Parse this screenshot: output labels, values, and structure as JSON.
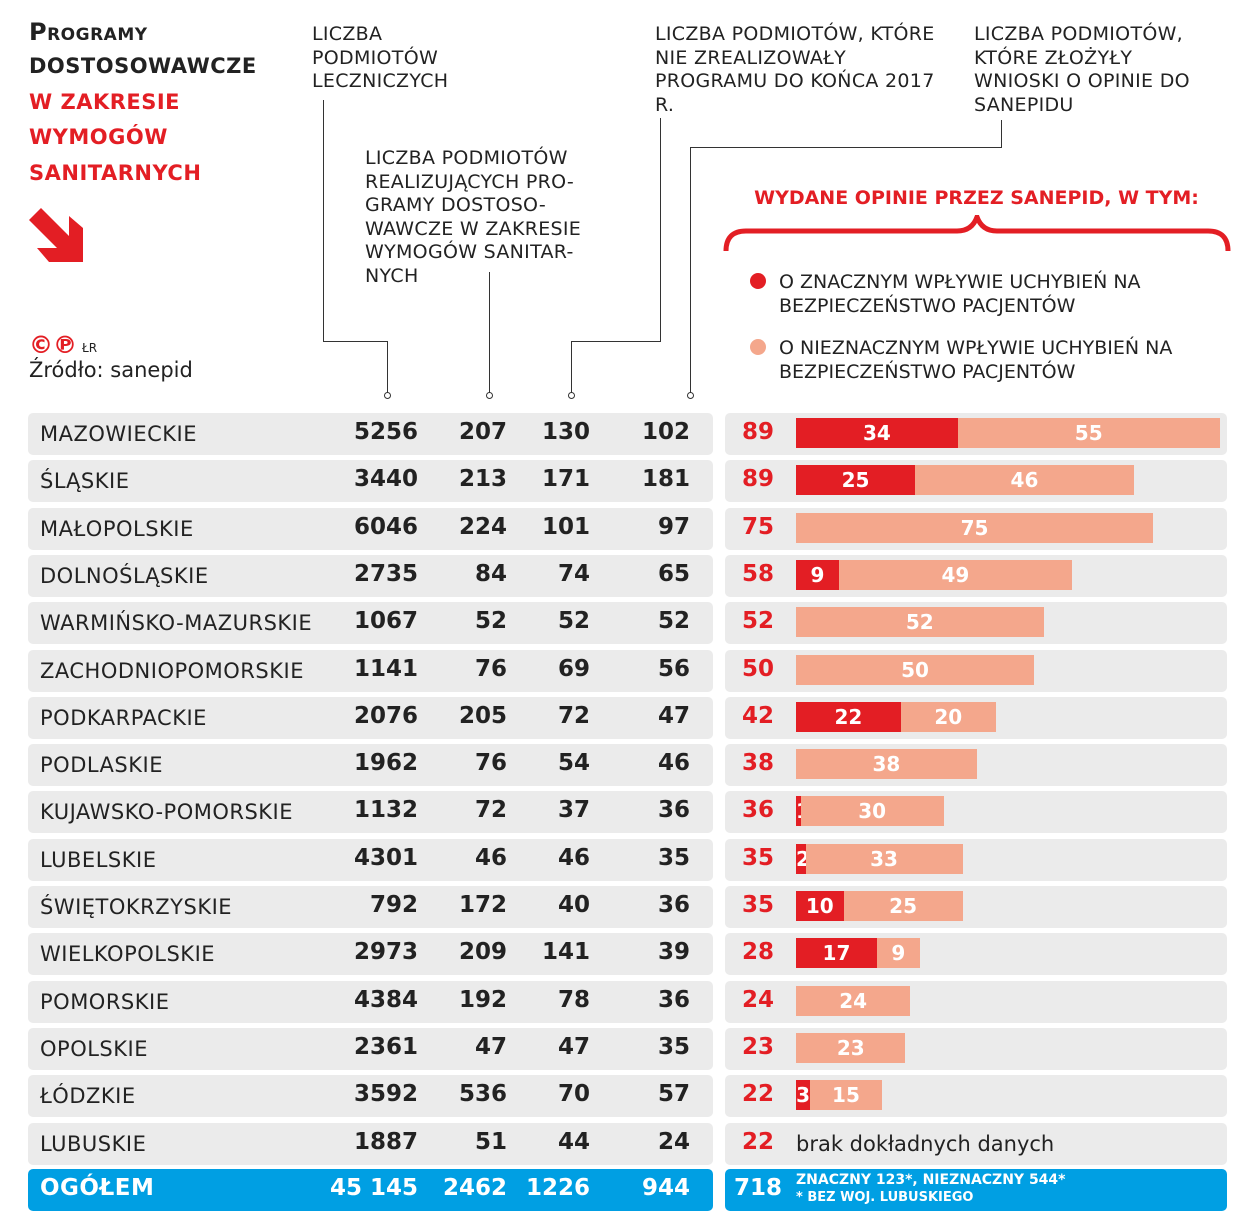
{
  "title": {
    "line1": "Programy",
    "line2": "dostosowawcze",
    "line3": "w zakresie",
    "line4": "wymogów",
    "line5": "sanitarnych"
  },
  "credit": {
    "marks": "©℗",
    "author": "ŁR",
    "source": "Źródło: sanepid"
  },
  "headers": {
    "col1": "LICZBA PODMIOTÓW LECZNICZYCH",
    "col2": "LICZBA PODMIOTÓW REALIZUJĄCYCH PRO-GRAMY DOSTOSO-WAWCZE W ZAKRESIE WYMOGÓW SANITAR-NYCH",
    "col3": "LICZBA PODMIOTÓW, KTÓRE NIE ZREALIZOWAŁY PROGRAMU DO KOŃCA 2017 R.",
    "col4": "LICZBA PODMIOTÓW, KTÓRE ZŁOŻYŁY WNIOSKI O OPINIE DO SANEPIDU",
    "opinions": "WYDANE OPINIE PRZEZ SANEPID, W TYM:"
  },
  "colors": {
    "red": "#e31e24",
    "salmon": "#f4a78c",
    "blue": "#009fe3",
    "row": "#ebebeb"
  },
  "chart_data": {
    "type": "bar",
    "stacked": true,
    "title": "WYDANE OPINIE PRZEZ SANEPID, W TYM:",
    "legend": [
      {
        "name": "O ZNACZNYM WPŁYWIE UCHYBIEŃ NA BEZPIECZEŃSTWO PACJENTÓW",
        "color": "#e31e24"
      },
      {
        "name": "O NIEZNACZNYM WPŁYWIE UCHYBIEŃ NA BEZPIECZEŃSTWO PACJENTÓW",
        "color": "#f4a78c"
      }
    ],
    "rows": [
      {
        "region": "MAZOWIECKIE",
        "entities": "5256",
        "programs": "207",
        "unfinished": "130",
        "applications": "102",
        "opinions": 89,
        "major": 34,
        "minor": 55
      },
      {
        "region": "ŚLĄSKIE",
        "entities": "3440",
        "programs": "213",
        "unfinished": "171",
        "applications": "181",
        "opinions": 89,
        "major": 25,
        "minor": 46
      },
      {
        "region": "MAŁOPOLSKIE",
        "entities": "6046",
        "programs": "224",
        "unfinished": "101",
        "applications": "97",
        "opinions": 75,
        "major": 0,
        "minor": 75
      },
      {
        "region": "DOLNOŚLĄSKIE",
        "entities": "2735",
        "programs": "84",
        "unfinished": "74",
        "applications": "65",
        "opinions": 58,
        "major": 9,
        "minor": 49
      },
      {
        "region": "WARMIŃSKO-MAZURSKIE",
        "entities": "1067",
        "programs": "52",
        "unfinished": "52",
        "applications": "52",
        "opinions": 52,
        "major": 0,
        "minor": 52
      },
      {
        "region": "ZACHODNIOPOMORSKIE",
        "entities": "1141",
        "programs": "76",
        "unfinished": "69",
        "applications": "56",
        "opinions": 50,
        "major": 0,
        "minor": 50
      },
      {
        "region": "PODKARPACKIE",
        "entities": "2076",
        "programs": "205",
        "unfinished": "72",
        "applications": "47",
        "opinions": 42,
        "major": 22,
        "minor": 20
      },
      {
        "region": "PODLASKIE",
        "entities": "1962",
        "programs": "76",
        "unfinished": "54",
        "applications": "46",
        "opinions": 38,
        "major": 0,
        "minor": 38
      },
      {
        "region": "KUJAWSKO-POMORSKIE",
        "entities": "1132",
        "programs": "72",
        "unfinished": "37",
        "applications": "36",
        "opinions": 36,
        "major": 1,
        "minor": 30
      },
      {
        "region": "LUBELSKIE",
        "entities": "4301",
        "programs": "46",
        "unfinished": "46",
        "applications": "35",
        "opinions": 35,
        "major": 2,
        "minor": 33
      },
      {
        "region": "ŚWIĘTOKRZYSKIE",
        "entities": "792",
        "programs": "172",
        "unfinished": "40",
        "applications": "36",
        "opinions": 35,
        "major": 10,
        "minor": 25
      },
      {
        "region": "WIELKOPOLSKIE",
        "entities": "2973",
        "programs": "209",
        "unfinished": "141",
        "applications": "39",
        "opinions": 28,
        "major": 17,
        "minor": 9
      },
      {
        "region": "POMORSKIE",
        "entities": "4384",
        "programs": "192",
        "unfinished": "78",
        "applications": "36",
        "opinions": 24,
        "major": 0,
        "minor": 24
      },
      {
        "region": "OPOLSKIE",
        "entities": "2361",
        "programs": "47",
        "unfinished": "47",
        "applications": "35",
        "opinions": 23,
        "major": 0,
        "minor": 23
      },
      {
        "region": "ŁÓDZKIE",
        "entities": "3592",
        "programs": "536",
        "unfinished": "70",
        "applications": "57",
        "opinions": 22,
        "major": 3,
        "minor": 15
      },
      {
        "region": "LUBUSKIE",
        "entities": "1887",
        "programs": "51",
        "unfinished": "44",
        "applications": "24",
        "opinions": 22,
        "major": null,
        "minor": null,
        "note": "brak dokładnych danych"
      }
    ],
    "total": {
      "region": "OGÓŁEM",
      "entities": "45 145",
      "programs": "2462",
      "unfinished": "1226",
      "applications": "944",
      "opinions": "718",
      "breakdown": "ZNACZNY 123*, NIEZNACZNY 544*",
      "footnote": "* BEZ WOJ. LUBUSKIEGO"
    }
  }
}
